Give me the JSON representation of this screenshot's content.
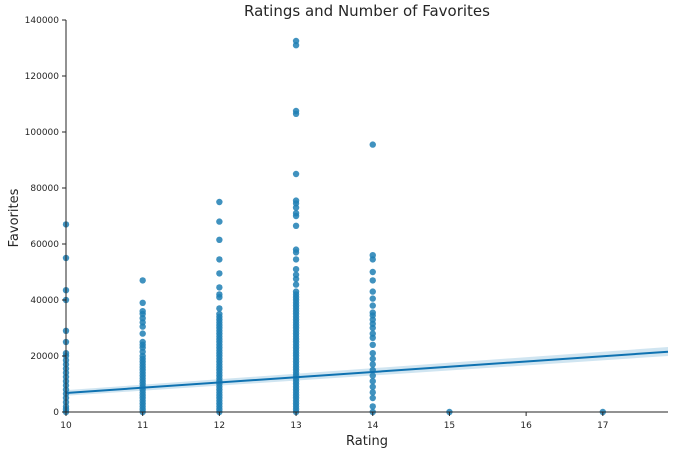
{
  "chart_data": {
    "type": "scatter",
    "title": "Ratings and Number of Favorites",
    "xlabel": "Rating",
    "ylabel": "Favorites",
    "xlim": [
      10,
      17.85
    ],
    "ylim": [
      0,
      140000
    ],
    "xticks": [
      "10",
      "11",
      "12",
      "13",
      "14",
      "15",
      "16",
      "17"
    ],
    "yticks": [
      "0",
      "20000",
      "40000",
      "60000",
      "80000",
      "100000",
      "120000",
      "140000"
    ],
    "grid": false,
    "point_color": "#1f7fb4",
    "line_color": "#0f72b1",
    "band_color": "#a9cfe6",
    "points": {
      "10": [
        0,
        1000,
        2000,
        3500,
        5000,
        6500,
        8000,
        9500,
        11000,
        12500,
        14000,
        15500,
        17000,
        18500,
        20000,
        21000,
        25000,
        29000,
        40000,
        43500,
        55000,
        67000
      ],
      "11": [
        0,
        1000,
        2000,
        3000,
        4000,
        5000,
        6000,
        7000,
        8000,
        9000,
        10000,
        11000,
        12000,
        13000,
        14000,
        15000,
        16000,
        17000,
        18000,
        19000,
        20000,
        21500,
        23000,
        24000,
        25000,
        28000,
        30500,
        32000,
        33500,
        35000,
        36000,
        39000,
        47000
      ],
      "12": [
        0,
        1000,
        2000,
        3000,
        4000,
        5000,
        6000,
        7000,
        8000,
        9000,
        10000,
        11000,
        12000,
        13000,
        14000,
        15000,
        16000,
        17000,
        18000,
        19000,
        20000,
        21000,
        22000,
        23000,
        24000,
        25000,
        26000,
        27000,
        28000,
        29000,
        30000,
        31000,
        32000,
        33000,
        34000,
        35000,
        37000,
        41000,
        42000,
        44500,
        49500,
        54500,
        61500,
        68000,
        75000
      ],
      "13": [
        0,
        1000,
        2000,
        3000,
        4000,
        5000,
        6000,
        7000,
        8000,
        9000,
        10000,
        11000,
        12000,
        13000,
        14000,
        15000,
        16000,
        17000,
        18000,
        19000,
        20000,
        21000,
        22000,
        23000,
        24000,
        25000,
        26000,
        27000,
        28000,
        29000,
        30000,
        31000,
        32000,
        33000,
        34000,
        35000,
        36000,
        37000,
        38000,
        39000,
        40000,
        41000,
        42000,
        43000,
        45500,
        47500,
        49000,
        51000,
        54500,
        57000,
        58000,
        66500,
        70000,
        71000,
        73000,
        74500,
        75500,
        85000,
        106500,
        107500,
        131000,
        132500
      ],
      "14": [
        0,
        2000,
        5000,
        7000,
        9000,
        11000,
        13000,
        15000,
        17000,
        19000,
        21000,
        24000,
        26500,
        28000,
        30000,
        31500,
        33000,
        34500,
        35500,
        38000,
        40500,
        43000,
        47000,
        50000,
        54500,
        56000,
        95500
      ],
      "15": [
        0
      ],
      "17": [
        0
      ]
    },
    "regression": {
      "x": [
        10,
        17.85
      ],
      "y": [
        6800,
        21500
      ],
      "ci_lower": [
        5800,
        20000
      ],
      "ci_upper": [
        7800,
        23200
      ]
    }
  }
}
